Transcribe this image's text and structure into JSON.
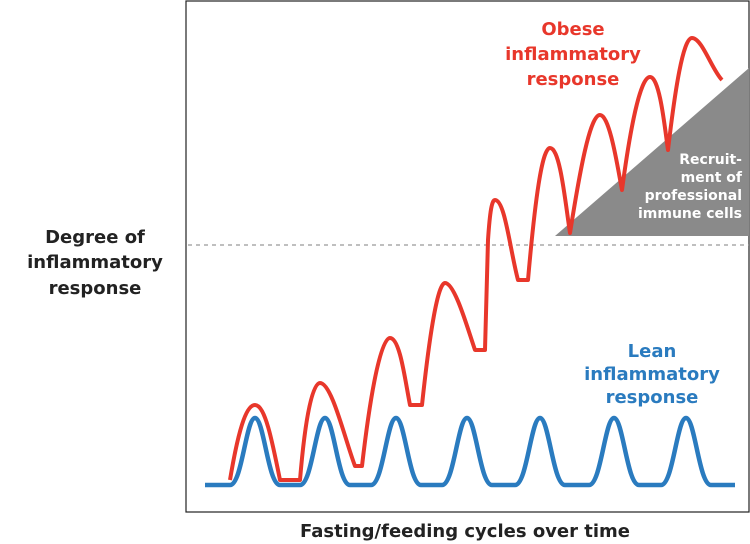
{
  "y_axis_label": [
    "Degree of",
    "inflammatory",
    "response"
  ],
  "x_axis_label": "Fasting/feeding cycles over time",
  "obese_label": [
    "Obese",
    "inflammatory",
    "response"
  ],
  "lean_label": [
    "Lean",
    "inflammatory",
    "response"
  ],
  "recruitment_label": [
    "Recruit-",
    "ment of",
    "professional",
    "immune cells"
  ]
}
